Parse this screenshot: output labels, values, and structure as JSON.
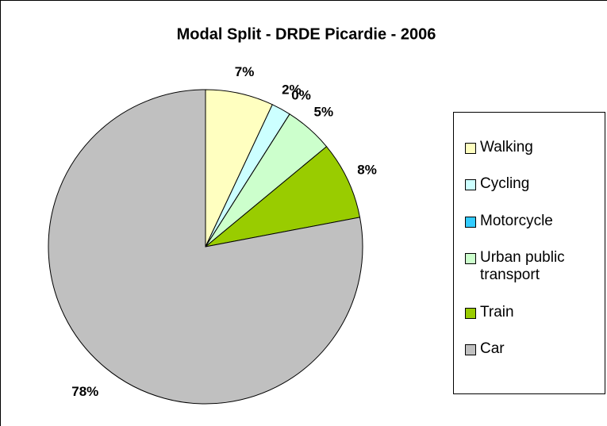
{
  "chart_data": {
    "type": "pie",
    "title": "Modal Split - DRDE Picardie - 2006",
    "categories": [
      "Walking",
      "Cycling",
      "Motorcycle",
      "Urban public transport",
      "Train",
      "Car"
    ],
    "values": [
      7,
      2,
      0,
      5,
      8,
      78
    ],
    "value_labels": [
      "7%",
      "2%",
      "0%",
      "5%",
      "8%",
      "78%"
    ],
    "colors": [
      "#ffffc0",
      "#ccffff",
      "#33ccff",
      "#ccffcc",
      "#99cc00",
      "#c0c0c0"
    ],
    "legend": "right"
  }
}
